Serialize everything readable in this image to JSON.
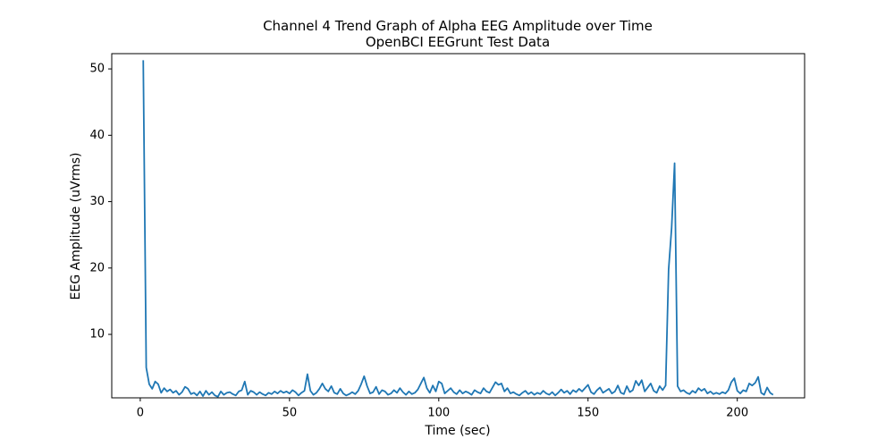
{
  "chart_data": {
    "type": "line",
    "title": "Channel 4 Trend Graph of Alpha EEG Amplitude over Time",
    "subtitle": "OpenBCI EEGrunt Test Data",
    "x_label": "Time (sec)",
    "y_label": "EEG Amplitude (uVrms)",
    "color": "#1f77b4",
    "xlim": [
      -9.55,
      222.55
    ],
    "ylim": [
      0.44,
      52.3
    ],
    "xticks": [
      0,
      50,
      100,
      150,
      200
    ],
    "yticks": [
      10,
      20,
      30,
      40,
      50
    ],
    "grid": false,
    "x": [
      1,
      2,
      3,
      4,
      5,
      6,
      7,
      8,
      9,
      10,
      11,
      12,
      13,
      14,
      15,
      16,
      17,
      18,
      19,
      20,
      21,
      22,
      23,
      24,
      25,
      26,
      27,
      28,
      29,
      30,
      31,
      32,
      33,
      34,
      35,
      36,
      37,
      38,
      39,
      40,
      41,
      42,
      43,
      44,
      45,
      46,
      47,
      48,
      49,
      50,
      51,
      52,
      53,
      54,
      55,
      56,
      57,
      58,
      59,
      60,
      61,
      62,
      63,
      64,
      65,
      66,
      67,
      68,
      69,
      70,
      71,
      72,
      73,
      74,
      75,
      76,
      77,
      78,
      79,
      80,
      81,
      82,
      83,
      84,
      85,
      86,
      87,
      88,
      89,
      90,
      91,
      92,
      93,
      94,
      95,
      96,
      97,
      98,
      99,
      100,
      101,
      102,
      103,
      104,
      105,
      106,
      107,
      108,
      109,
      110,
      111,
      112,
      113,
      114,
      115,
      116,
      117,
      118,
      119,
      120,
      121,
      122,
      123,
      124,
      125,
      126,
      127,
      128,
      129,
      130,
      131,
      132,
      133,
      134,
      135,
      136,
      137,
      138,
      139,
      140,
      141,
      142,
      143,
      144,
      145,
      146,
      147,
      148,
      149,
      150,
      151,
      152,
      153,
      154,
      155,
      156,
      157,
      158,
      159,
      160,
      161,
      162,
      163,
      164,
      165,
      166,
      167,
      168,
      169,
      170,
      171,
      172,
      173,
      174,
      175,
      176,
      177,
      178,
      179,
      180,
      181,
      182,
      183,
      184,
      185,
      186,
      187,
      188,
      189,
      190,
      191,
      192,
      193,
      194,
      195,
      196,
      197,
      198,
      199,
      200,
      201,
      202,
      203,
      204,
      205,
      206,
      207,
      208,
      209,
      210,
      211,
      212
    ],
    "values": [
      51.3,
      5,
      2.5,
      1.8,
      2.9,
      2.5,
      1.2,
      1.9,
      1.4,
      1.7,
      1.2,
      1.5,
      0.9,
      1.3,
      2.1,
      1.8,
      1.0,
      1.2,
      0.8,
      1.4,
      0.7,
      1.5,
      0.9,
      1.3,
      0.8,
      0.6,
      1.4,
      0.9,
      1.2,
      1.3,
      1.0,
      0.8,
      1.4,
      1.6,
      2.9,
      0.9,
      1.5,
      1.3,
      0.9,
      1.3,
      1.0,
      0.8,
      1.2,
      1.0,
      1.4,
      1.1,
      1.5,
      1.2,
      1.4,
      1.1,
      1.6,
      1.3,
      0.8,
      1.2,
      1.5,
      4.0,
      1.5,
      0.9,
      1.2,
      1.8,
      2.6,
      1.8,
      1.4,
      2.2,
      1.2,
      1.0,
      1.8,
      1.1,
      0.8,
      1.0,
      1.3,
      1.0,
      1.5,
      2.5,
      3.7,
      2.2,
      1.1,
      1.3,
      2.1,
      1.0,
      1.6,
      1.4,
      0.9,
      1.1,
      1.6,
      1.2,
      1.9,
      1.3,
      0.9,
      1.4,
      1.0,
      1.2,
      1.7,
      2.6,
      3.5,
      1.9,
      1.2,
      2.3,
      1.4,
      2.9,
      2.6,
      1.1,
      1.5,
      1.9,
      1.3,
      1.0,
      1.6,
      1.1,
      1.4,
      1.2,
      0.9,
      1.6,
      1.3,
      1.1,
      1.9,
      1.4,
      1.2,
      2.0,
      2.8,
      2.4,
      2.6,
      1.4,
      1.9,
      1.1,
      1.3,
      1.0,
      0.8,
      1.2,
      1.5,
      1.0,
      1.3,
      0.9,
      1.2,
      1.0,
      1.5,
      1.1,
      0.9,
      1.3,
      0.8,
      1.2,
      1.7,
      1.2,
      1.5,
      1.0,
      1.6,
      1.3,
      1.8,
      1.4,
      1.9,
      2.4,
      1.3,
      1.0,
      1.6,
      2.0,
      1.2,
      1.5,
      1.8,
      1.1,
      1.4,
      2.3,
      1.2,
      1.0,
      2.2,
      1.3,
      1.6,
      3.0,
      2.3,
      3.1,
      1.4,
      2.0,
      2.6,
      1.5,
      1.2,
      2.2,
      1.6,
      2.3,
      19.8,
      26,
      35.8,
      2.2,
      1.4,
      1.6,
      1.2,
      1.0,
      1.5,
      1.2,
      1.9,
      1.5,
      1.8,
      1.1,
      1.4,
      1.0,
      1.2,
      1.0,
      1.3,
      1.1,
      1.6,
      2.8,
      3.4,
      1.5,
      1.1,
      1.6,
      1.4,
      2.6,
      2.3,
      2.7,
      3.6,
      1.2,
      0.9,
      2.0,
      1.2,
      0.9
    ]
  }
}
